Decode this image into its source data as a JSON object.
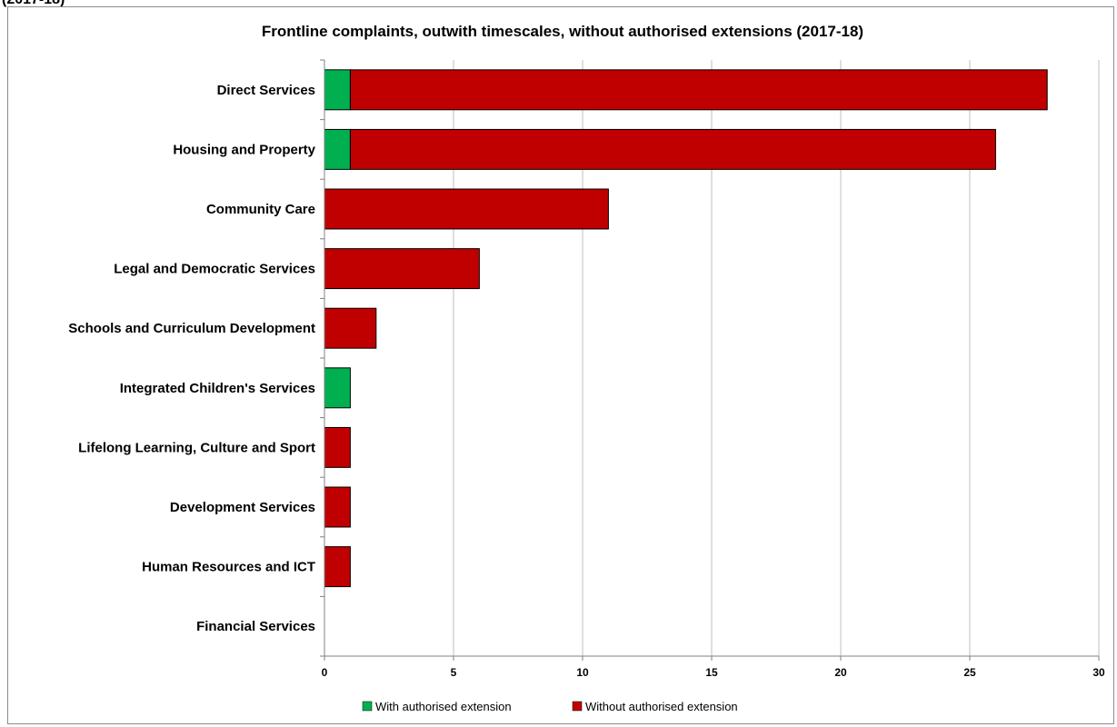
{
  "header_fragment": "(2017-18)",
  "colors": {
    "with_extension": "#00b050",
    "without_extension": "#c00000",
    "bar_border": "#000000",
    "grid": "#bfbfbf",
    "axis": "#808080"
  },
  "chart_data": {
    "type": "bar",
    "orientation": "horizontal",
    "stacked": true,
    "title": "Frontline complaints, outwith timescales, without authorised extensions (2017-18)",
    "xlabel": "",
    "ylabel": "",
    "xlim": [
      0,
      30
    ],
    "xticks": [
      0,
      5,
      10,
      15,
      20,
      25,
      30
    ],
    "grid": "vertical",
    "legend_position": "bottom",
    "categories": [
      "Direct Services",
      "Housing and Property",
      "Community Care",
      "Legal and Democratic Services",
      "Schools and Curriculum Development",
      "Integrated Children's Services",
      "Lifelong Learning, Culture and Sport",
      "Development Services",
      "Human Resources and ICT",
      "Financial Services"
    ],
    "series": [
      {
        "name": "With authorised extension",
        "values": [
          1,
          1,
          0,
          0,
          0,
          1,
          0,
          0,
          0,
          0
        ]
      },
      {
        "name": "Without authorised extension",
        "values": [
          27,
          25,
          11,
          6,
          2,
          0,
          1,
          1,
          1,
          0
        ]
      }
    ]
  }
}
